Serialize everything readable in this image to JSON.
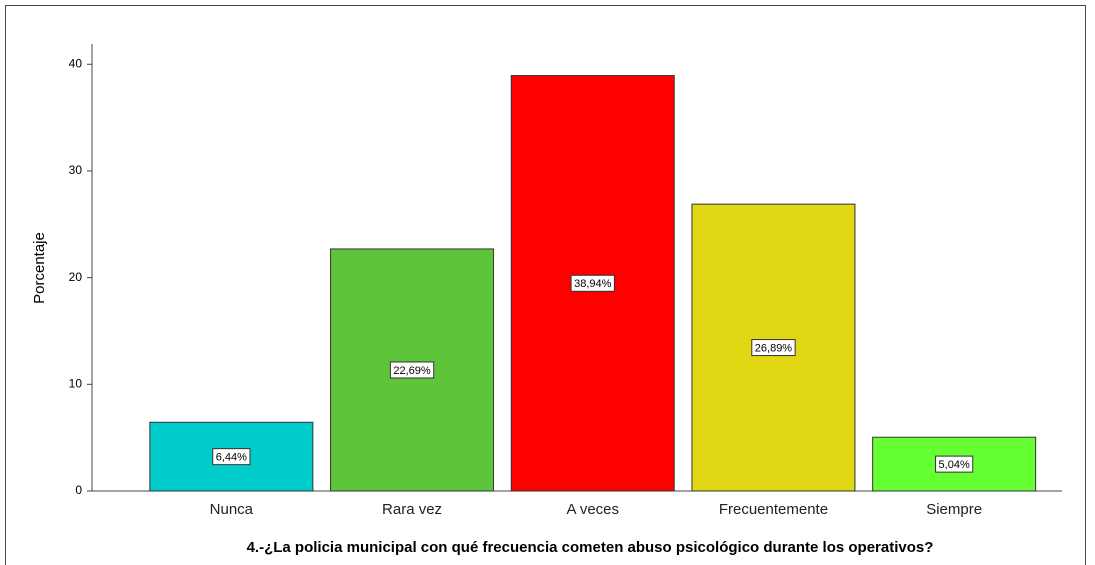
{
  "chart_data": {
    "type": "bar",
    "x_label": "4.-¿La policia municipal con qué frecuencia cometen abuso psicológico durante los operativos?",
    "y_label": "Porcentaje",
    "categories": [
      "Nunca",
      "Rara vez",
      "A veces",
      "Frecuentemente",
      "Siempre"
    ],
    "values": [
      6.44,
      22.69,
      38.94,
      26.89,
      5.04
    ],
    "value_labels": [
      "6,44%",
      "22,69%",
      "38,94%",
      "26,89%",
      "5,04%"
    ],
    "colors": [
      "#00cccc",
      "#5ec43a",
      "#ff0000",
      "#e2d714",
      "#66ff33"
    ],
    "ylim": [
      0,
      41.9
    ],
    "yticks": [
      0,
      10,
      20,
      30,
      40
    ],
    "grid": false
  }
}
